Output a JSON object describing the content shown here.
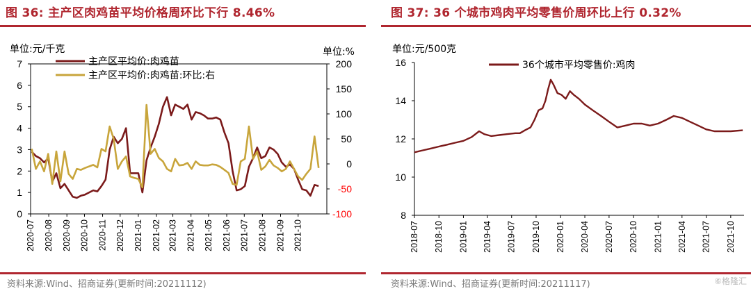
{
  "left": {
    "title": "图 36:  主产区肉鸡苗平均价格周环比下行 8.46%",
    "source": "资料来源:Wind、招商证券(更新时间:20211112)",
    "chart_data": {
      "type": "line",
      "y_left_unit": "单位:元/千克",
      "y_right_unit": "单位:%",
      "ylim_left": [
        0,
        7
      ],
      "yticks_left": [
        "0",
        "1",
        "2",
        "3",
        "4",
        "5",
        "6",
        "7"
      ],
      "ylim_right": [
        -100,
        200
      ],
      "yticks_right": [
        "-100",
        "-50",
        "0",
        "50",
        "100",
        "150",
        "200"
      ],
      "xlim": [
        "2020-07-01",
        "2021-11-19"
      ],
      "xticks": [
        "2020-07",
        "2020-08",
        "2020-09",
        "2020-10",
        "2020-11",
        "2020-12",
        "2021-01",
        "2021-02",
        "2021-03",
        "2021-04",
        "2021-05",
        "2021-06",
        "2021-07",
        "2021-08",
        "2021-09",
        "2021-10"
      ],
      "series": [
        {
          "name": "主产区平均价:肉鸡苗",
          "axis": "left",
          "color": "#7b1a1a",
          "points": [
            [
              "2020-07-03",
              2.9
            ],
            [
              "2020-07-10",
              2.7
            ],
            [
              "2020-07-17",
              2.6
            ],
            [
              "2020-07-24",
              2.4
            ],
            [
              "2020-07-31",
              2.6
            ],
            [
              "2020-08-07",
              1.5
            ],
            [
              "2020-08-14",
              1.9
            ],
            [
              "2020-08-21",
              1.2
            ],
            [
              "2020-08-28",
              1.4
            ],
            [
              "2020-09-04",
              1.1
            ],
            [
              "2020-09-11",
              0.8
            ],
            [
              "2020-09-18",
              0.75
            ],
            [
              "2020-09-25",
              0.85
            ],
            [
              "2020-10-02",
              0.9
            ],
            [
              "2020-10-09",
              1.0
            ],
            [
              "2020-10-16",
              1.1
            ],
            [
              "2020-10-23",
              1.05
            ],
            [
              "2020-10-30",
              1.3
            ],
            [
              "2020-11-06",
              1.6
            ],
            [
              "2020-11-13",
              3.0
            ],
            [
              "2020-11-20",
              3.6
            ],
            [
              "2020-11-27",
              3.3
            ],
            [
              "2020-12-04",
              3.5
            ],
            [
              "2020-12-11",
              4.0
            ],
            [
              "2020-12-18",
              1.9
            ],
            [
              "2020-12-25",
              1.9
            ],
            [
              "2021-01-01",
              1.9
            ],
            [
              "2021-01-08",
              1.0
            ],
            [
              "2021-01-15",
              2.5
            ],
            [
              "2021-01-22",
              3.1
            ],
            [
              "2021-01-29",
              3.6
            ],
            [
              "2021-02-05",
              4.2
            ],
            [
              "2021-02-12",
              5.0
            ],
            [
              "2021-02-19",
              5.45
            ],
            [
              "2021-02-26",
              4.6
            ],
            [
              "2021-03-05",
              5.1
            ],
            [
              "2021-03-12",
              5.0
            ],
            [
              "2021-03-19",
              4.9
            ],
            [
              "2021-03-26",
              5.1
            ],
            [
              "2021-04-02",
              4.4
            ],
            [
              "2021-04-09",
              4.75
            ],
            [
              "2021-04-16",
              4.7
            ],
            [
              "2021-04-23",
              4.6
            ],
            [
              "2021-04-30",
              4.45
            ],
            [
              "2021-05-07",
              4.45
            ],
            [
              "2021-05-14",
              4.5
            ],
            [
              "2021-05-21",
              4.4
            ],
            [
              "2021-05-28",
              3.8
            ],
            [
              "2021-06-04",
              3.3
            ],
            [
              "2021-06-11",
              2.0
            ],
            [
              "2021-06-18",
              1.1
            ],
            [
              "2021-06-25",
              1.15
            ],
            [
              "2021-07-02",
              1.3
            ],
            [
              "2021-07-09",
              2.2
            ],
            [
              "2021-07-16",
              2.6
            ],
            [
              "2021-07-23",
              3.1
            ],
            [
              "2021-07-30",
              2.6
            ],
            [
              "2021-08-06",
              2.7
            ],
            [
              "2021-08-13",
              3.1
            ],
            [
              "2021-08-20",
              3.0
            ],
            [
              "2021-08-27",
              2.8
            ],
            [
              "2021-09-03",
              2.4
            ],
            [
              "2021-09-10",
              2.2
            ],
            [
              "2021-09-17",
              2.3
            ],
            [
              "2021-09-24",
              2.1
            ],
            [
              "2021-10-01",
              1.6
            ],
            [
              "2021-10-08",
              1.15
            ],
            [
              "2021-10-15",
              1.1
            ],
            [
              "2021-10-22",
              0.85
            ],
            [
              "2021-10-29",
              1.35
            ],
            [
              "2021-11-05",
              1.3
            ]
          ]
        },
        {
          "name": "主产区平均价:肉鸡苗:环比:右",
          "axis": "right",
          "color": "#c8a53b",
          "points": [
            [
              "2020-07-03",
              30
            ],
            [
              "2020-07-10",
              -10
            ],
            [
              "2020-07-17",
              5
            ],
            [
              "2020-07-24",
              -15
            ],
            [
              "2020-07-31",
              20
            ],
            [
              "2020-08-07",
              -40
            ],
            [
              "2020-08-14",
              25
            ],
            [
              "2020-08-21",
              -35
            ],
            [
              "2020-08-28",
              25
            ],
            [
              "2020-09-04",
              -20
            ],
            [
              "2020-09-11",
              -30
            ],
            [
              "2020-09-18",
              -10
            ],
            [
              "2020-09-25",
              -12
            ],
            [
              "2020-10-02",
              -8
            ],
            [
              "2020-10-09",
              -5
            ],
            [
              "2020-10-16",
              -2
            ],
            [
              "2020-10-23",
              -7
            ],
            [
              "2020-10-30",
              30
            ],
            [
              "2020-11-06",
              25
            ],
            [
              "2020-11-13",
              75
            ],
            [
              "2020-11-20",
              50
            ],
            [
              "2020-11-27",
              -10
            ],
            [
              "2020-12-04",
              5
            ],
            [
              "2020-12-11",
              15
            ],
            [
              "2020-12-18",
              -25
            ],
            [
              "2020-12-25",
              -28
            ],
            [
              "2021-01-01",
              -30
            ],
            [
              "2021-01-08",
              -47
            ],
            [
              "2021-01-15",
              118
            ],
            [
              "2021-01-22",
              20
            ],
            [
              "2021-01-29",
              30
            ],
            [
              "2021-02-05",
              12
            ],
            [
              "2021-02-12",
              5
            ],
            [
              "2021-02-19",
              -10
            ],
            [
              "2021-02-26",
              -15
            ],
            [
              "2021-03-05",
              10
            ],
            [
              "2021-03-12",
              -3
            ],
            [
              "2021-03-19",
              -2
            ],
            [
              "2021-03-26",
              2
            ],
            [
              "2021-04-02",
              -10
            ],
            [
              "2021-04-09",
              5
            ],
            [
              "2021-04-16",
              -2
            ],
            [
              "2021-04-23",
              -3
            ],
            [
              "2021-04-30",
              -3
            ],
            [
              "2021-05-07",
              -1
            ],
            [
              "2021-05-14",
              -2
            ],
            [
              "2021-05-21",
              -6
            ],
            [
              "2021-05-28",
              -12
            ],
            [
              "2021-06-04",
              -18
            ],
            [
              "2021-06-11",
              -40
            ],
            [
              "2021-06-18",
              -42
            ],
            [
              "2021-06-25",
              5
            ],
            [
              "2021-07-02",
              10
            ],
            [
              "2021-07-09",
              75
            ],
            [
              "2021-07-16",
              10
            ],
            [
              "2021-07-23",
              25
            ],
            [
              "2021-07-30",
              -12
            ],
            [
              "2021-08-06",
              -5
            ],
            [
              "2021-08-13",
              8
            ],
            [
              "2021-08-20",
              -3
            ],
            [
              "2021-08-27",
              -8
            ],
            [
              "2021-09-03",
              -15
            ],
            [
              "2021-09-10",
              -10
            ],
            [
              "2021-09-17",
              5
            ],
            [
              "2021-09-24",
              -10
            ],
            [
              "2021-10-01",
              -25
            ],
            [
              "2021-10-08",
              -32
            ],
            [
              "2021-10-15",
              -20
            ],
            [
              "2021-10-22",
              -10
            ],
            [
              "2021-10-29",
              55
            ],
            [
              "2021-11-05",
              -8
            ]
          ]
        }
      ]
    }
  },
  "right": {
    "title": "图 37:  36 个城市鸡肉平均零售价周环比上行 0.32%",
    "source": "资料来源:Wind、招商证券(更新时间:20211117)",
    "chart_data": {
      "type": "line",
      "y_unit": "单位:元/500克",
      "ylim": [
        8,
        16
      ],
      "yticks": [
        "8",
        "10",
        "12",
        "14",
        "16"
      ],
      "xlim": [
        "2018-07-01",
        "2021-11-20"
      ],
      "xticks": [
        "2018-07",
        "2018-10",
        "2019-01",
        "2019-04",
        "2019-07",
        "2019-10",
        "2020-01",
        "2020-04",
        "2020-07",
        "2020-10",
        "2021-01",
        "2021-04",
        "2021-07",
        "2021-10"
      ],
      "series": [
        {
          "name": "36个城市平均零售价:鸡肉",
          "color": "#7b1a1a",
          "points": [
            [
              "2018-07-01",
              11.3
            ],
            [
              "2018-08-01",
              11.4
            ],
            [
              "2018-09-01",
              11.5
            ],
            [
              "2018-10-01",
              11.6
            ],
            [
              "2018-11-01",
              11.7
            ],
            [
              "2018-12-01",
              11.8
            ],
            [
              "2019-01-01",
              11.9
            ],
            [
              "2019-02-01",
              12.1
            ],
            [
              "2019-03-01",
              12.4
            ],
            [
              "2019-03-20",
              12.25
            ],
            [
              "2019-04-15",
              12.15
            ],
            [
              "2019-05-15",
              12.2
            ],
            [
              "2019-06-15",
              12.25
            ],
            [
              "2019-07-15",
              12.3
            ],
            [
              "2019-08-01",
              12.3
            ],
            [
              "2019-08-20",
              12.45
            ],
            [
              "2019-09-10",
              12.6
            ],
            [
              "2019-09-25",
              13.0
            ],
            [
              "2019-10-10",
              13.5
            ],
            [
              "2019-10-25",
              13.6
            ],
            [
              "2019-11-05",
              14.0
            ],
            [
              "2019-11-15",
              14.6
            ],
            [
              "2019-11-25",
              15.1
            ],
            [
              "2019-12-05",
              14.85
            ],
            [
              "2019-12-20",
              14.4
            ],
            [
              "2020-01-05",
              14.3
            ],
            [
              "2020-01-20",
              14.1
            ],
            [
              "2020-02-05",
              14.5
            ],
            [
              "2020-02-20",
              14.3
            ],
            [
              "2020-03-10",
              14.1
            ],
            [
              "2020-04-01",
              13.8
            ],
            [
              "2020-05-01",
              13.5
            ],
            [
              "2020-06-01",
              13.2
            ],
            [
              "2020-07-01",
              12.9
            ],
            [
              "2020-08-01",
              12.6
            ],
            [
              "2020-09-01",
              12.7
            ],
            [
              "2020-10-01",
              12.8
            ],
            [
              "2020-11-01",
              12.8
            ],
            [
              "2020-12-01",
              12.7
            ],
            [
              "2021-01-01",
              12.8
            ],
            [
              "2021-02-01",
              13.0
            ],
            [
              "2021-03-01",
              13.2
            ],
            [
              "2021-04-01",
              13.1
            ],
            [
              "2021-05-01",
              12.9
            ],
            [
              "2021-06-01",
              12.7
            ],
            [
              "2021-07-01",
              12.5
            ],
            [
              "2021-08-01",
              12.4
            ],
            [
              "2021-09-01",
              12.4
            ],
            [
              "2021-10-01",
              12.4
            ],
            [
              "2021-11-15",
              12.45
            ]
          ]
        }
      ]
    }
  },
  "watermark": "⑥格隆汇"
}
